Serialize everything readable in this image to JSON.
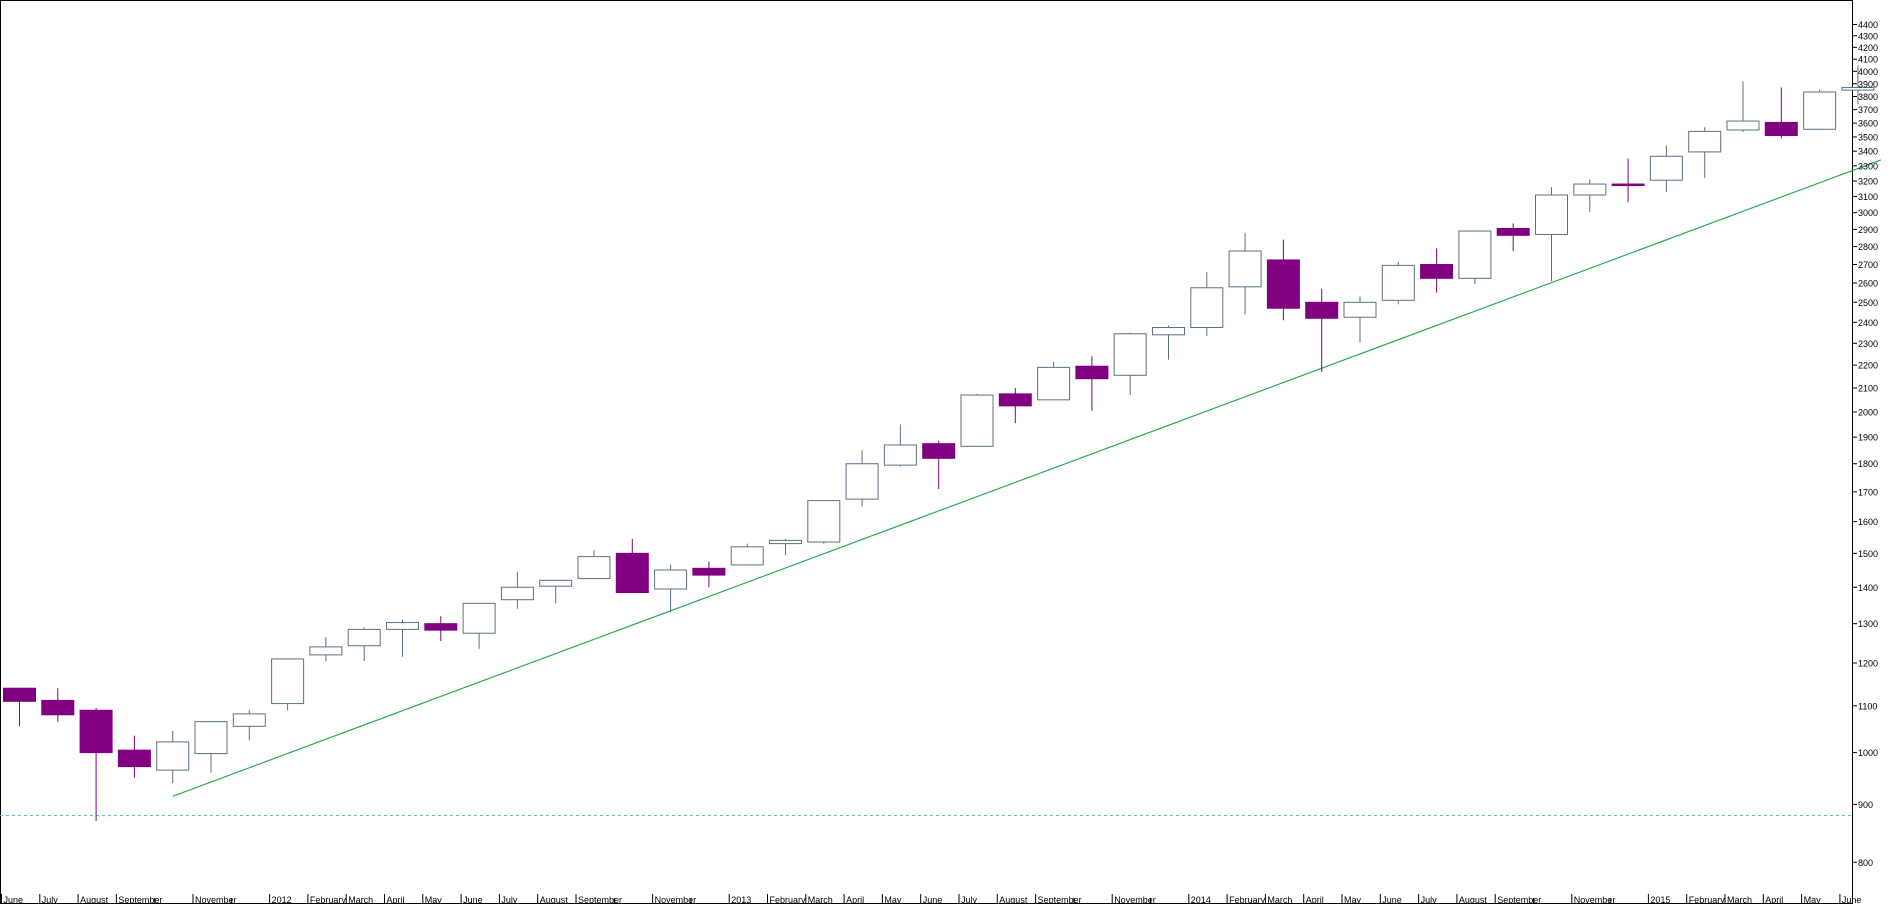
{
  "chart_data": {
    "type": "candlestick",
    "title": "",
    "xlabel": "",
    "ylabel": "",
    "ylog": true,
    "ylim": [
      750,
      4550
    ],
    "grid": false,
    "colors": {
      "up_body_fill": "#ffffff",
      "up_body_stroke": "#5e7080",
      "down_body_fill": "#800080",
      "down_body_stroke": "#800080",
      "trendline": "#33aa55",
      "support_line": "#66bbbb",
      "axis": "#000000",
      "text": "#000000"
    },
    "y_ticks": [
      800,
      900,
      1000,
      1100,
      1200,
      1300,
      1400,
      1500,
      1600,
      1700,
      1800,
      1900,
      2000,
      2100,
      2200,
      2300,
      2400,
      2500,
      2600,
      2700,
      2800,
      2900,
      3000,
      3100,
      3200,
      3300,
      3400,
      3500,
      3600,
      3700,
      3800,
      3900,
      4000,
      4100,
      4200,
      4300,
      4400
    ],
    "x_labels": [
      {
        "i": 0,
        "label": "June"
      },
      {
        "i": 1,
        "label": "July"
      },
      {
        "i": 2,
        "label": "August"
      },
      {
        "i": 3,
        "label": "September"
      },
      {
        "i": 5,
        "label": "November"
      },
      {
        "i": 7,
        "label": "2012"
      },
      {
        "i": 8,
        "label": "February"
      },
      {
        "i": 9,
        "label": "March"
      },
      {
        "i": 10,
        "label": "April"
      },
      {
        "i": 11,
        "label": "May"
      },
      {
        "i": 12,
        "label": "June"
      },
      {
        "i": 13,
        "label": "July"
      },
      {
        "i": 14,
        "label": "August"
      },
      {
        "i": 15,
        "label": "September"
      },
      {
        "i": 17,
        "label": "November"
      },
      {
        "i": 19,
        "label": "2013"
      },
      {
        "i": 20,
        "label": "February"
      },
      {
        "i": 21,
        "label": "March"
      },
      {
        "i": 22,
        "label": "April"
      },
      {
        "i": 23,
        "label": "May"
      },
      {
        "i": 24,
        "label": "June"
      },
      {
        "i": 25,
        "label": "July"
      },
      {
        "i": 26,
        "label": "August"
      },
      {
        "i": 27,
        "label": "September"
      },
      {
        "i": 29,
        "label": "November"
      },
      {
        "i": 31,
        "label": "2014"
      },
      {
        "i": 32,
        "label": "February"
      },
      {
        "i": 33,
        "label": "March"
      },
      {
        "i": 34,
        "label": "April"
      },
      {
        "i": 35,
        "label": "May"
      },
      {
        "i": 36,
        "label": "June"
      },
      {
        "i": 37,
        "label": "July"
      },
      {
        "i": 38,
        "label": "August"
      },
      {
        "i": 39,
        "label": "September"
      },
      {
        "i": 41,
        "label": "November"
      },
      {
        "i": 43,
        "label": "2015"
      },
      {
        "i": 44,
        "label": "February"
      },
      {
        "i": 45,
        "label": "March"
      },
      {
        "i": 46,
        "label": "April"
      },
      {
        "i": 47,
        "label": "May"
      },
      {
        "i": 48,
        "label": "June"
      }
    ],
    "candles": [
      {
        "o": 1140,
        "h": 1140,
        "l": 1055,
        "c": 1110
      },
      {
        "o": 1112,
        "h": 1140,
        "l": 1065,
        "c": 1080
      },
      {
        "o": 1090,
        "h": 1095,
        "l": 870,
        "c": 1000
      },
      {
        "o": 1005,
        "h": 1035,
        "l": 950,
        "c": 972
      },
      {
        "o": 965,
        "h": 1045,
        "l": 940,
        "c": 1022
      },
      {
        "o": 998,
        "h": 1065,
        "l": 960,
        "c": 1065
      },
      {
        "o": 1055,
        "h": 1090,
        "l": 1025,
        "c": 1082
      },
      {
        "o": 1105,
        "h": 1210,
        "l": 1090,
        "c": 1210
      },
      {
        "o": 1220,
        "h": 1265,
        "l": 1205,
        "c": 1240
      },
      {
        "o": 1243,
        "h": 1290,
        "l": 1205,
        "c": 1285
      },
      {
        "o": 1285,
        "h": 1310,
        "l": 1215,
        "c": 1303
      },
      {
        "o": 1300,
        "h": 1320,
        "l": 1255,
        "c": 1283
      },
      {
        "o": 1275,
        "h": 1355,
        "l": 1235,
        "c": 1355
      },
      {
        "o": 1365,
        "h": 1445,
        "l": 1340,
        "c": 1400
      },
      {
        "o": 1403,
        "h": 1420,
        "l": 1355,
        "c": 1420
      },
      {
        "o": 1425,
        "h": 1510,
        "l": 1425,
        "c": 1490
      },
      {
        "o": 1500,
        "h": 1545,
        "l": 1385,
        "c": 1385
      },
      {
        "o": 1395,
        "h": 1465,
        "l": 1330,
        "c": 1450
      },
      {
        "o": 1455,
        "h": 1475,
        "l": 1400,
        "c": 1435
      },
      {
        "o": 1465,
        "h": 1530,
        "l": 1465,
        "c": 1520
      },
      {
        "o": 1530,
        "h": 1545,
        "l": 1495,
        "c": 1540
      },
      {
        "o": 1535,
        "h": 1670,
        "l": 1530,
        "c": 1670
      },
      {
        "o": 1675,
        "h": 1850,
        "l": 1650,
        "c": 1800
      },
      {
        "o": 1795,
        "h": 1950,
        "l": 1790,
        "c": 1870
      },
      {
        "o": 1875,
        "h": 1885,
        "l": 1710,
        "c": 1820
      },
      {
        "o": 1865,
        "h": 2075,
        "l": 1865,
        "c": 2070
      },
      {
        "o": 2075,
        "h": 2100,
        "l": 1955,
        "c": 2025
      },
      {
        "o": 2050,
        "h": 2215,
        "l": 2050,
        "c": 2190
      },
      {
        "o": 2195,
        "h": 2240,
        "l": 2005,
        "c": 2140
      },
      {
        "o": 2155,
        "h": 2350,
        "l": 2070,
        "c": 2345
      },
      {
        "o": 2340,
        "h": 2385,
        "l": 2225,
        "c": 2375
      },
      {
        "o": 2375,
        "h": 2660,
        "l": 2335,
        "c": 2575
      },
      {
        "o": 2580,
        "h": 2880,
        "l": 2440,
        "c": 2775
      },
      {
        "o": 2725,
        "h": 2840,
        "l": 2410,
        "c": 2470
      },
      {
        "o": 2500,
        "h": 2570,
        "l": 2170,
        "c": 2420
      },
      {
        "o": 2425,
        "h": 2530,
        "l": 2305,
        "c": 2500
      },
      {
        "o": 2510,
        "h": 2715,
        "l": 2490,
        "c": 2695
      },
      {
        "o": 2700,
        "h": 2790,
        "l": 2550,
        "c": 2625
      },
      {
        "o": 2625,
        "h": 2895,
        "l": 2595,
        "c": 2890
      },
      {
        "o": 2905,
        "h": 2935,
        "l": 2775,
        "c": 2865
      },
      {
        "o": 2870,
        "h": 3160,
        "l": 2610,
        "c": 3110
      },
      {
        "o": 3110,
        "h": 3210,
        "l": 3005,
        "c": 3180
      },
      {
        "o": 3180,
        "h": 3350,
        "l": 3065,
        "c": 3175
      },
      {
        "o": 3205,
        "h": 3440,
        "l": 3130,
        "c": 3365
      },
      {
        "o": 3395,
        "h": 3570,
        "l": 3220,
        "c": 3540
      },
      {
        "o": 3550,
        "h": 3920,
        "l": 3535,
        "c": 3615
      },
      {
        "o": 3605,
        "h": 3870,
        "l": 3490,
        "c": 3510
      },
      {
        "o": 3555,
        "h": 3855,
        "l": 3555,
        "c": 3835
      },
      {
        "o": 3850,
        "h": 4050,
        "l": 3740,
        "c": 3870
      }
    ],
    "trendline": {
      "from": {
        "i": 4,
        "y": 915
      },
      "to": {
        "i": 48.6,
        "y": 3340
      }
    },
    "support_line": {
      "y": 880
    }
  }
}
